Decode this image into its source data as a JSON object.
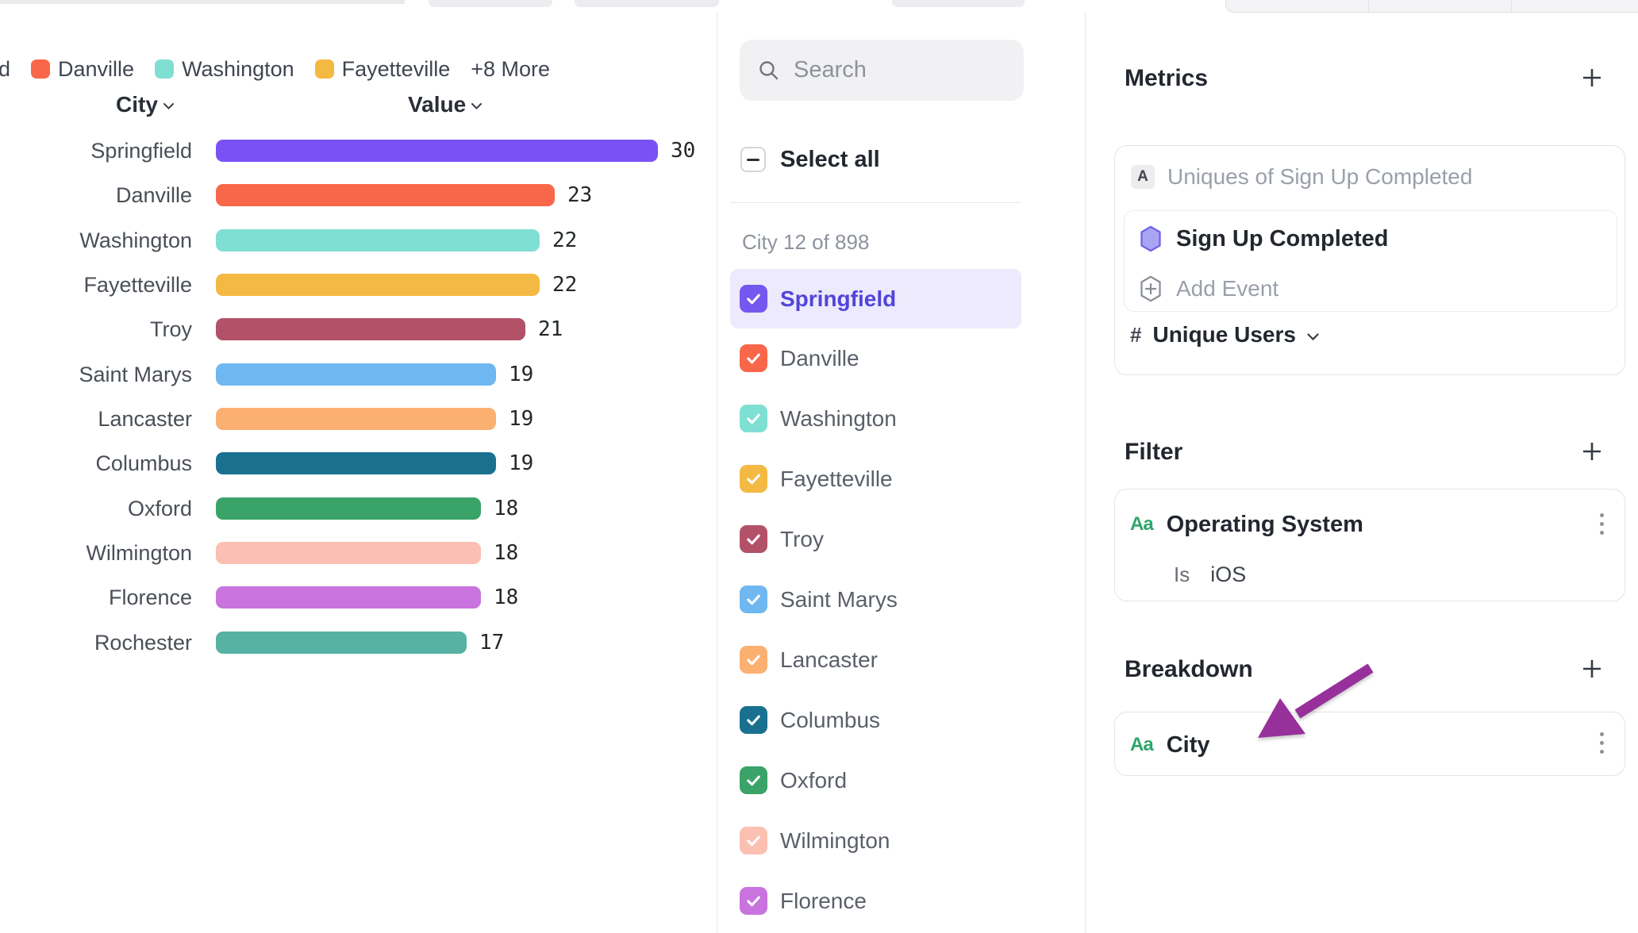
{
  "legend": {
    "clipped_label": "ld",
    "items": [
      {
        "label": "Danville",
        "color": "#F9674A"
      },
      {
        "label": "Washington",
        "color": "#7FDFD2"
      },
      {
        "label": "Fayetteville",
        "color": "#F4B942"
      }
    ],
    "more_label": "+8 More"
  },
  "chart_data": {
    "type": "bar",
    "orientation": "horizontal",
    "title": "",
    "xlabel": "Value",
    "ylabel": "City",
    "xlim": [
      0,
      30
    ],
    "grid": false,
    "col_city_header": "City",
    "col_value_header": "Value",
    "categories": [
      "Springfield",
      "Danville",
      "Washington",
      "Fayetteville",
      "Troy",
      "Saint Marys",
      "Lancaster",
      "Columbus",
      "Oxford",
      "Wilmington",
      "Florence",
      "Rochester"
    ],
    "values": [
      30,
      23,
      22,
      22,
      21,
      19,
      19,
      19,
      18,
      18,
      18,
      17
    ],
    "colors": [
      "#7A52F4",
      "#F9674A",
      "#7FDFD2",
      "#F4B942",
      "#B35169",
      "#6FB7F0",
      "#FBB072",
      "#19718F",
      "#3AA368",
      "#FBC0B2",
      "#C873DE",
      "#57B2A3"
    ]
  },
  "selector": {
    "search_placeholder": "Search",
    "select_all_label": "Select all",
    "count_label": "City 12 of 898",
    "items": [
      {
        "label": "Springfield",
        "color": "#7457EE",
        "checked": true,
        "highlighted": true
      },
      {
        "label": "Danville",
        "color": "#F9674A",
        "checked": true,
        "highlighted": false
      },
      {
        "label": "Washington",
        "color": "#7FDFD2",
        "checked": true,
        "highlighted": false
      },
      {
        "label": "Fayetteville",
        "color": "#F4B942",
        "checked": true,
        "highlighted": false
      },
      {
        "label": "Troy",
        "color": "#B35169",
        "checked": true,
        "highlighted": false
      },
      {
        "label": "Saint Marys",
        "color": "#6FB7F0",
        "checked": true,
        "highlighted": false
      },
      {
        "label": "Lancaster",
        "color": "#FBB072",
        "checked": true,
        "highlighted": false
      },
      {
        "label": "Columbus",
        "color": "#19718F",
        "checked": true,
        "highlighted": false
      },
      {
        "label": "Oxford",
        "color": "#3AA368",
        "checked": true,
        "highlighted": false
      },
      {
        "label": "Wilmington",
        "color": "#FBC0B2",
        "checked": true,
        "highlighted": false
      },
      {
        "label": "Florence",
        "color": "#C873DE",
        "checked": true,
        "highlighted": false
      }
    ]
  },
  "inspector": {
    "metrics": {
      "title": "Metrics",
      "badge": "A",
      "summary": "Uniques of Sign Up Completed",
      "event_name": "Sign Up Completed",
      "add_event_label": "Add Event",
      "measure_symbol": "#",
      "measure_label": "Unique Users"
    },
    "filter": {
      "title": "Filter",
      "property_icon": "Aa",
      "property_name": "Operating System",
      "operator": "Is",
      "value": "iOS"
    },
    "breakdown": {
      "title": "Breakdown",
      "property_icon": "Aa",
      "property_name": "City"
    }
  },
  "colors": {
    "selected_row_bg": "#ECEAFC",
    "selected_row_text": "#5244D9",
    "annotation_arrow": "#97309B",
    "property_green": "#2EA56B",
    "event_hex_fill": "#A9A5F3",
    "event_hex_stroke": "#6F5FE8"
  }
}
